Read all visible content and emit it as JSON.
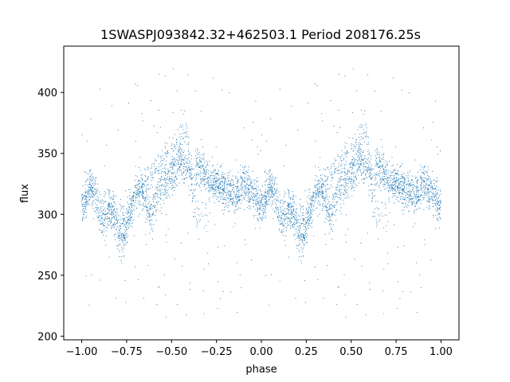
{
  "chart_data": {
    "type": "scatter",
    "title": "1SWASPJ093842.32+462503.1 Period 208176.25s",
    "xlabel": "phase",
    "ylabel": "flux",
    "xlim": [
      -1.1,
      1.1
    ],
    "ylim": [
      197,
      438
    ],
    "x_ticks": [
      -1.0,
      -0.75,
      -0.5,
      -0.25,
      0.0,
      0.25,
      0.5,
      0.75,
      1.0
    ],
    "x_tick_labels": [
      "−1.00",
      "−0.75",
      "−0.50",
      "−0.25",
      "0.00",
      "0.25",
      "0.50",
      "0.75",
      "1.00"
    ],
    "y_ticks": [
      200,
      250,
      300,
      350,
      400
    ],
    "y_tick_labels": [
      "200",
      "250",
      "300",
      "350",
      "400"
    ],
    "grid": false,
    "point_color": "#1f77b4",
    "profile_phase": [
      0.0,
      0.02,
      0.05,
      0.08,
      0.1,
      0.13,
      0.15,
      0.18,
      0.2,
      0.22,
      0.25,
      0.28,
      0.3,
      0.33,
      0.35,
      0.38,
      0.4,
      0.42,
      0.45,
      0.48,
      0.5,
      0.53,
      0.55,
      0.58,
      0.6,
      0.62,
      0.65,
      0.68,
      0.7,
      0.72,
      0.75,
      0.78,
      0.8,
      0.83,
      0.85,
      0.88,
      0.9,
      0.92,
      0.95,
      0.98,
      1.0
    ],
    "profile_flux": [
      305,
      312,
      322,
      318,
      300,
      296,
      304,
      298,
      285,
      276,
      290,
      305,
      318,
      322,
      310,
      300,
      305,
      318,
      324,
      328,
      332,
      338,
      345,
      340,
      335,
      325,
      342,
      335,
      330,
      326,
      326,
      322,
      318,
      320,
      314,
      320,
      326,
      322,
      318,
      310,
      305
    ],
    "branch_phase": [
      0.18,
      0.2,
      0.22,
      0.24,
      0.26,
      0.28,
      0.3,
      0.55,
      0.58,
      0.6,
      0.62,
      0.65,
      0.68,
      0.7
    ],
    "branch_flux": [
      310,
      302,
      300,
      298,
      305,
      310,
      315,
      362,
      370,
      350,
      305,
      300,
      300,
      302
    ],
    "n_points": 2400
  }
}
